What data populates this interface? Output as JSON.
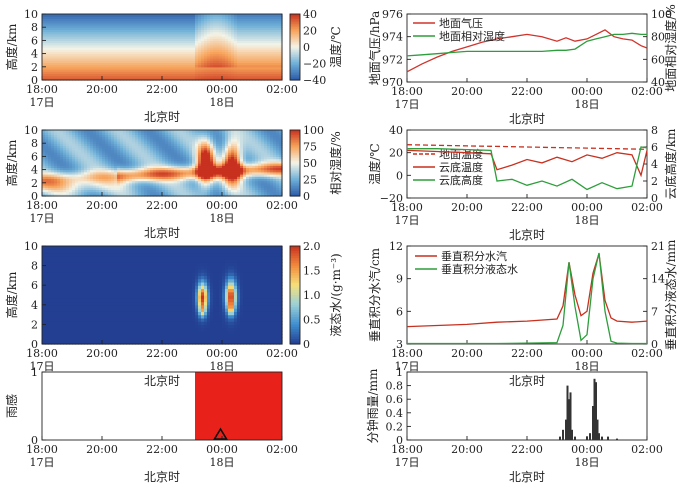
{
  "chart_data": [
    {
      "id": "temp_profile",
      "type": "heatmap",
      "xlabel": "北京时",
      "ylabel": "高度/km",
      "x_ticks": [
        "18:00",
        "20:00",
        "22:00",
        "00:00",
        "02:00"
      ],
      "x_day_labels": [
        "17日",
        "18日"
      ],
      "y_ticks": [
        "0",
        "2",
        "4",
        "6",
        "8",
        "10"
      ],
      "ylim": [
        0,
        10
      ],
      "colorbar_label": "温度/℃",
      "colorbar_ticks": [
        "40",
        "20",
        "0",
        "−20",
        "−40"
      ],
      "colorbar_range": [
        -40,
        40
      ],
      "colormap": [
        "#2b5aa8",
        "#6fb0d8",
        "#f4f4e8",
        "#f7a35a",
        "#c8311f"
      ]
    },
    {
      "id": "pressure_humidity",
      "type": "line",
      "xlabel": "北京时",
      "x_ticks": [
        "18:00",
        "20:00",
        "22:00",
        "00:00",
        "02:00"
      ],
      "x_day_labels": [
        "17日",
        "18日"
      ],
      "ylabel_left": "地面气压/hPa",
      "ylabel_right": "地面相对湿度/%",
      "y_left_ticks": [
        "970",
        "972",
        "974",
        "976"
      ],
      "y_right_ticks": [
        "40",
        "60",
        "80",
        "100"
      ],
      "ylim_left": [
        970,
        976
      ],
      "ylim_right": [
        40,
        100
      ],
      "series": [
        {
          "name": "地面气压",
          "color": "#d0342c",
          "axis": "left",
          "x": [
            18.0,
            18.5,
            19.0,
            19.5,
            20.0,
            20.5,
            21.0,
            21.5,
            22.0,
            22.5,
            23.0,
            23.3,
            23.6,
            24.0,
            24.3,
            24.6,
            24.9,
            25.2,
            25.5,
            25.8,
            26.0
          ],
          "y": [
            970.9,
            971.6,
            972.2,
            972.7,
            973.1,
            973.5,
            973.8,
            974.0,
            974.2,
            974.0,
            973.6,
            973.9,
            973.6,
            973.8,
            974.2,
            974.6,
            974.0,
            973.8,
            973.7,
            973.2,
            973.0
          ]
        },
        {
          "name": "地面相对湿度",
          "color": "#2e9e3c",
          "axis": "right",
          "x": [
            18.0,
            18.5,
            19.0,
            19.5,
            20.0,
            20.5,
            21.0,
            21.5,
            22.0,
            22.5,
            23.0,
            23.3,
            23.6,
            24.0,
            24.3,
            24.6,
            24.9,
            25.2,
            25.5,
            25.8,
            26.0
          ],
          "y": [
            63,
            64,
            65,
            66,
            67,
            67,
            67,
            67,
            67,
            67,
            68,
            68,
            69,
            76,
            78,
            80,
            82,
            82,
            83,
            82,
            82
          ]
        }
      ]
    },
    {
      "id": "rh_profile",
      "type": "heatmap",
      "xlabel": "北京时",
      "ylabel": "高度/km",
      "x_ticks": [
        "18:00",
        "20:00",
        "22:00",
        "00:00",
        "02:00"
      ],
      "x_day_labels": [
        "17日",
        "18日"
      ],
      "y_ticks": [
        "0",
        "2",
        "4",
        "6",
        "8",
        "10"
      ],
      "ylim": [
        0,
        10
      ],
      "colorbar_label": "相对湿度/%",
      "colorbar_ticks": [
        "100",
        "75",
        "50",
        "25",
        "0"
      ],
      "colorbar_range": [
        0,
        100
      ],
      "colormap": [
        "#2b5aa8",
        "#6fb0d8",
        "#f4f4e8",
        "#f7a35a",
        "#c8311f"
      ]
    },
    {
      "id": "temp_cloudbase",
      "type": "line",
      "xlabel": "北京时",
      "x_ticks": [
        "18:00",
        "20:00",
        "22:00",
        "00:00",
        "02:00"
      ],
      "x_day_labels": [
        "17日",
        "18日"
      ],
      "ylabel_left": "温度/℃",
      "ylabel_right": "云底高度/km",
      "y_left_ticks": [
        "−20",
        "0",
        "20",
        "40"
      ],
      "y_right_ticks": [
        "0",
        "2",
        "4",
        "6",
        "8"
      ],
      "ylim_left": [
        -20,
        40
      ],
      "ylim_right": [
        0,
        8
      ],
      "series": [
        {
          "name": "地面温度",
          "color": "#c8311f",
          "axis": "left",
          "dashed": true,
          "x": [
            18.0,
            19.0,
            20.0,
            21.0,
            22.0,
            23.0,
            24.0,
            25.0,
            26.0
          ],
          "y": [
            27,
            26.5,
            26,
            25.5,
            25,
            24.5,
            24,
            23.5,
            23
          ]
        },
        {
          "name": "云底温度",
          "color": "#c8311f",
          "axis": "left",
          "x": [
            18.0,
            19.0,
            20.0,
            20.8,
            21.0,
            21.5,
            22.0,
            22.5,
            23.0,
            23.5,
            24.0,
            24.5,
            25.0,
            25.5,
            25.8,
            26.0
          ],
          "y": [
            22,
            21,
            20,
            19,
            5,
            9,
            14,
            11,
            16,
            12,
            18,
            15,
            20,
            18,
            0,
            22
          ]
        },
        {
          "name": "云底高度",
          "color": "#2e9e3c",
          "axis": "right",
          "x": [
            18.0,
            19.0,
            20.0,
            20.8,
            21.0,
            21.5,
            22.0,
            22.5,
            23.0,
            23.5,
            24.0,
            24.5,
            25.0,
            25.5,
            25.8,
            26.0
          ],
          "y": [
            5.8,
            5.8,
            5.7,
            5.6,
            2.0,
            2.2,
            1.5,
            2.0,
            1.4,
            2.2,
            1.0,
            1.8,
            1.1,
            1.4,
            6.0,
            5.9
          ]
        }
      ]
    },
    {
      "id": "lwc_profile",
      "type": "heatmap",
      "xlabel": "北京时",
      "ylabel": "高度/km",
      "x_ticks": [
        "18:00",
        "20:00",
        "22:00",
        "00:00",
        "02:00"
      ],
      "x_day_labels": [
        "17日",
        "18日"
      ],
      "y_ticks": [
        "0",
        "2",
        "4",
        "6",
        "8",
        "10"
      ],
      "ylim": [
        0,
        10
      ],
      "colorbar_label": "液态水/(g·m⁻³)",
      "colorbar_ticks": [
        "2.0",
        "1.5",
        "1.0",
        "0.5",
        "0"
      ],
      "colorbar_range": [
        0,
        2
      ],
      "colormap": [
        "#233f92",
        "#3f8fcf",
        "#9ad0d8",
        "#f6e07a",
        "#f28a3c",
        "#c8311f"
      ]
    },
    {
      "id": "integrated_water",
      "type": "line",
      "xlabel": "北京时",
      "x_ticks": [
        "18:00",
        "20:00",
        "22:00",
        "00:00",
        "02:00"
      ],
      "x_day_labels": [
        "17日",
        "18日"
      ],
      "ylabel_left": "垂直积分水汽/cm",
      "ylabel_right": "垂直积分液态水/mm",
      "y_left_ticks": [
        "3",
        "6",
        "9",
        "12"
      ],
      "y_right_ticks": [
        "0",
        "7",
        "14",
        "21"
      ],
      "ylim_left": [
        3,
        12
      ],
      "ylim_right": [
        0,
        21
      ],
      "series": [
        {
          "name": "垂直积分水汽",
          "color": "#c8311f",
          "axis": "left",
          "x": [
            18.0,
            19.0,
            20.0,
            21.0,
            22.0,
            23.0,
            23.2,
            23.4,
            23.6,
            23.8,
            24.0,
            24.2,
            24.4,
            24.6,
            24.8,
            25.0,
            25.5,
            26.0
          ],
          "y": [
            4.6,
            4.7,
            4.8,
            5.0,
            5.1,
            5.3,
            6.5,
            10.5,
            7.5,
            5.6,
            6.0,
            9.5,
            11.3,
            7.0,
            5.4,
            5.1,
            5.0,
            5.1
          ]
        },
        {
          "name": "垂直积分液态水",
          "color": "#2e9e3c",
          "axis": "right",
          "x": [
            18.0,
            19.0,
            20.0,
            21.0,
            22.0,
            23.0,
            23.2,
            23.4,
            23.6,
            23.8,
            24.0,
            24.2,
            24.4,
            24.6,
            24.8,
            25.0,
            25.5,
            26.0
          ],
          "y": [
            0.1,
            0.1,
            0.1,
            0.1,
            0.2,
            0.3,
            4.0,
            17.5,
            8.0,
            0.8,
            2.0,
            14.0,
            19.5,
            7.0,
            0.6,
            0.2,
            0.1,
            0.1
          ]
        }
      ]
    },
    {
      "id": "rain_sensor",
      "type": "area",
      "xlabel": "北京时",
      "ylabel": "雨感",
      "x_ticks": [
        "18:00",
        "20:00",
        "22:00",
        "00:00",
        "02:00"
      ],
      "x_day_labels": [
        "17日",
        "18日"
      ],
      "y_ticks": [
        "0",
        "1"
      ],
      "ylim": [
        0,
        1
      ],
      "color": "#e8221a",
      "x": [
        18.0,
        23.1,
        23.1,
        26.0
      ],
      "y": [
        0,
        0,
        1,
        1
      ],
      "marker_x": 23.95
    },
    {
      "id": "minute_rain",
      "type": "bar",
      "xlabel": "北京时",
      "ylabel": "分钟雨量/mm",
      "x_ticks": [
        "18:00",
        "20:00",
        "22:00",
        "00:00",
        "02:00"
      ],
      "x_day_labels": [
        "17日",
        "18日"
      ],
      "y_ticks": [
        "0",
        "0.2",
        "0.4",
        "0.6",
        "0.8",
        "1"
      ],
      "ylim": [
        0,
        1
      ],
      "color": "#333333",
      "x": [
        23.1,
        23.2,
        23.3,
        23.35,
        23.4,
        23.45,
        23.5,
        23.6,
        24.0,
        24.1,
        24.2,
        24.25,
        24.3,
        24.35,
        24.4,
        24.5,
        24.7,
        25.0
      ],
      "values": [
        0.05,
        0.15,
        0.3,
        0.8,
        0.6,
        0.7,
        0.15,
        0.05,
        0.05,
        0.1,
        0.5,
        0.9,
        0.85,
        0.3,
        0.1,
        0.05,
        0.05,
        0.02
      ]
    }
  ]
}
